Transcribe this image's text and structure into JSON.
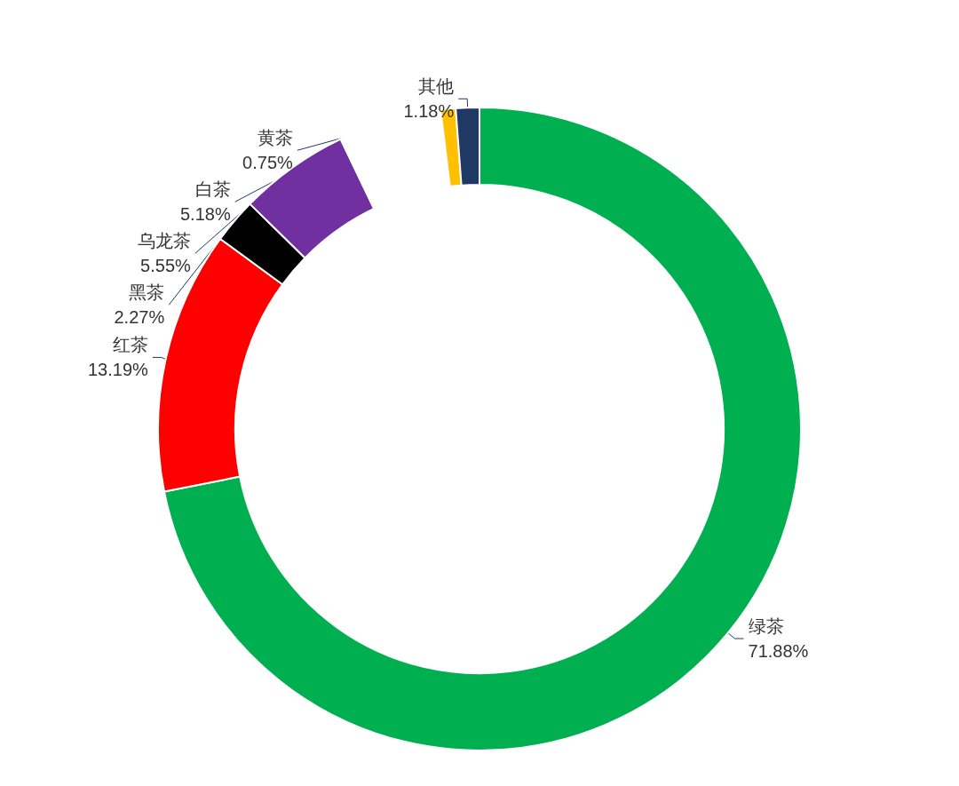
{
  "chart_data": {
    "type": "donut",
    "categories": [
      "绿茶",
      "红茶",
      "黑茶",
      "乌龙茶",
      "白茶",
      "黄茶",
      "其他"
    ],
    "values": [
      71.88,
      13.19,
      2.27,
      5.55,
      5.18,
      0.75,
      1.18
    ],
    "value_labels": [
      "71.88%",
      "13.19%",
      "2.27%",
      "5.55%",
      "5.18%",
      "0.75%",
      "1.18%"
    ],
    "colors": [
      "#00b050",
      "#ff0000",
      "#000000",
      "#7030a0",
      "#ffffff",
      "#ffc000",
      "#203864"
    ],
    "legend": false
  }
}
